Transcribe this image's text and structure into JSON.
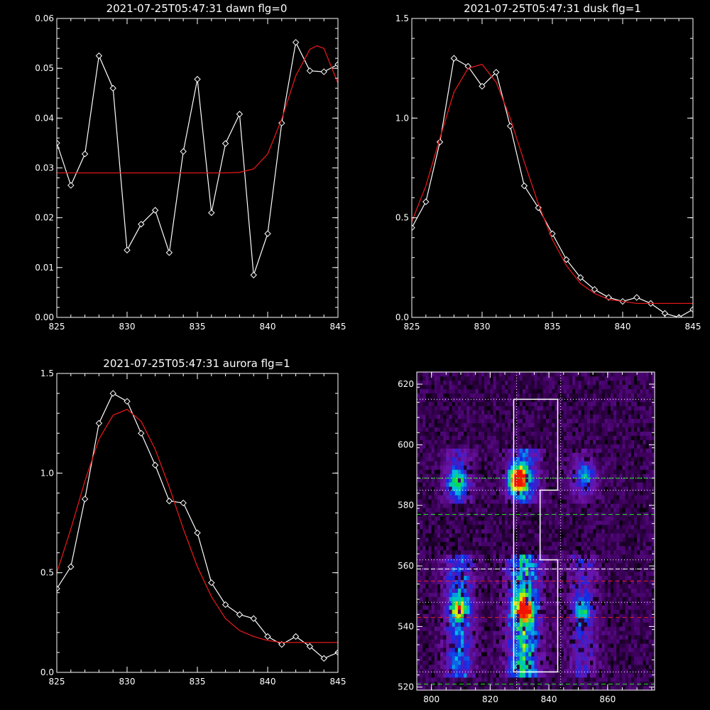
{
  "colors": {
    "background": "#000000",
    "data_line": "#ffffff",
    "fit_line": "#e0181a",
    "markers": "#ffffff"
  },
  "chart_data": [
    {
      "type": "line",
      "title": "2021-07-25T05:47:31 dawn flg=0",
      "xlim": [
        825,
        845
      ],
      "ylim": [
        0.0,
        0.06
      ],
      "xticks": [
        "825",
        "830",
        "835",
        "840",
        "845"
      ],
      "yticks": [
        "0.00",
        "0.01",
        "0.02",
        "0.03",
        "0.04",
        "0.05",
        "0.06"
      ],
      "series": [
        {
          "kind": "data",
          "x": [
            825,
            826,
            827,
            828,
            829,
            830,
            831,
            832,
            833,
            834,
            835,
            836,
            837,
            838,
            839,
            840,
            841,
            842,
            843,
            844,
            845
          ],
          "y": [
            0.035,
            0.0265,
            0.0328,
            0.0525,
            0.046,
            0.0135,
            0.0187,
            0.0215,
            0.013,
            0.0333,
            0.0478,
            0.021,
            0.0349,
            0.0408,
            0.0085,
            0.0168,
            0.039,
            0.0552,
            0.0495,
            0.0493,
            0.0508
          ]
        },
        {
          "kind": "fit",
          "x": [
            825,
            827,
            829,
            831,
            833,
            835,
            837,
            838,
            839,
            840,
            841,
            842,
            843,
            843.5,
            844,
            845
          ],
          "y": [
            0.029,
            0.029,
            0.029,
            0.029,
            0.029,
            0.029,
            0.029,
            0.0291,
            0.0298,
            0.0328,
            0.0398,
            0.0485,
            0.0538,
            0.0545,
            0.054,
            0.047
          ]
        }
      ]
    },
    {
      "type": "line",
      "title": "2021-07-25T05:47:31 dusk flg=1",
      "xlim": [
        825,
        845
      ],
      "ylim": [
        0.0,
        1.5
      ],
      "xticks": [
        "825",
        "830",
        "835",
        "840",
        "845"
      ],
      "yticks": [
        "0.0",
        "0.5",
        "1.0",
        "1.5"
      ],
      "series": [
        {
          "kind": "data",
          "x": [
            825,
            826,
            827,
            828,
            829,
            830,
            831,
            832,
            833,
            834,
            835,
            836,
            837,
            838,
            839,
            840,
            841,
            842,
            843,
            844,
            845
          ],
          "y": [
            0.45,
            0.58,
            0.88,
            1.3,
            1.26,
            1.16,
            1.23,
            0.96,
            0.66,
            0.55,
            0.42,
            0.29,
            0.2,
            0.14,
            0.1,
            0.08,
            0.1,
            0.07,
            0.02,
            0.0,
            0.04
          ]
        },
        {
          "kind": "fit",
          "x": [
            825,
            826,
            827,
            828,
            829,
            830,
            831,
            832,
            833,
            834,
            835,
            836,
            837,
            838,
            839,
            840,
            841,
            842,
            843,
            844,
            845
          ],
          "y": [
            0.48,
            0.66,
            0.9,
            1.13,
            1.25,
            1.27,
            1.18,
            1.0,
            0.78,
            0.57,
            0.39,
            0.26,
            0.17,
            0.12,
            0.09,
            0.08,
            0.07,
            0.07,
            0.07,
            0.07,
            0.07
          ]
        }
      ]
    },
    {
      "type": "line",
      "title": "2021-07-25T05:47:31 aurora flg=1",
      "xlim": [
        825,
        845
      ],
      "ylim": [
        0.0,
        1.5
      ],
      "xticks": [
        "825",
        "830",
        "835",
        "840",
        "845"
      ],
      "yticks": [
        "0.0",
        "0.5",
        "1.0",
        "1.5"
      ],
      "series": [
        {
          "kind": "data",
          "x": [
            825,
            826,
            827,
            828,
            829,
            830,
            831,
            832,
            833,
            834,
            835,
            836,
            837,
            838,
            839,
            840,
            841,
            842,
            843,
            844,
            845
          ],
          "y": [
            0.42,
            0.53,
            0.87,
            1.25,
            1.4,
            1.36,
            1.2,
            1.04,
            0.86,
            0.85,
            0.7,
            0.45,
            0.34,
            0.29,
            0.27,
            0.18,
            0.14,
            0.18,
            0.13,
            0.07,
            0.1
          ]
        },
        {
          "kind": "fit",
          "x": [
            825,
            826,
            827,
            828,
            829,
            830,
            831,
            832,
            833,
            834,
            835,
            836,
            837,
            838,
            839,
            840,
            841,
            842,
            843,
            844,
            845
          ],
          "y": [
            0.5,
            0.72,
            0.96,
            1.17,
            1.29,
            1.32,
            1.26,
            1.12,
            0.93,
            0.72,
            0.53,
            0.38,
            0.27,
            0.21,
            0.18,
            0.16,
            0.15,
            0.15,
            0.15,
            0.15,
            0.15
          ]
        }
      ]
    },
    {
      "type": "heatmap",
      "title": "",
      "xlim": [
        795,
        876
      ],
      "ylim": [
        519,
        624
      ],
      "xticks": [
        "800",
        "820",
        "840",
        "860"
      ],
      "yticks": [
        "520",
        "540",
        "560",
        "580",
        "600",
        "620"
      ],
      "hot_spots": [
        {
          "x": 829,
          "y": 588,
          "peak": 1.0
        },
        {
          "x": 808,
          "y": 587,
          "peak": 0.45
        },
        {
          "x": 852,
          "y": 589,
          "peak": 0.32
        },
        {
          "x": 831,
          "y": 545,
          "peak": 0.65
        },
        {
          "x": 809,
          "y": 545,
          "peak": 0.45
        },
        {
          "x": 851,
          "y": 545,
          "peak": 0.32
        }
      ],
      "dotted_vertical_x": [
        829,
        844
      ],
      "dotted_horizontal_y": [
        615,
        589,
        585,
        562,
        559,
        548,
        525
      ],
      "dashed_green_y": [
        589,
        577,
        521
      ],
      "dashed_white_y": [
        559
      ],
      "dashed_red_y": [
        555,
        543
      ],
      "box_outline_data": [
        [
          828,
          615
        ],
        [
          843,
          615
        ],
        [
          843,
          585
        ],
        [
          837,
          585
        ],
        [
          837,
          562
        ],
        [
          843,
          562
        ],
        [
          843,
          525
        ],
        [
          828,
          525
        ],
        [
          828,
          615
        ]
      ]
    }
  ]
}
